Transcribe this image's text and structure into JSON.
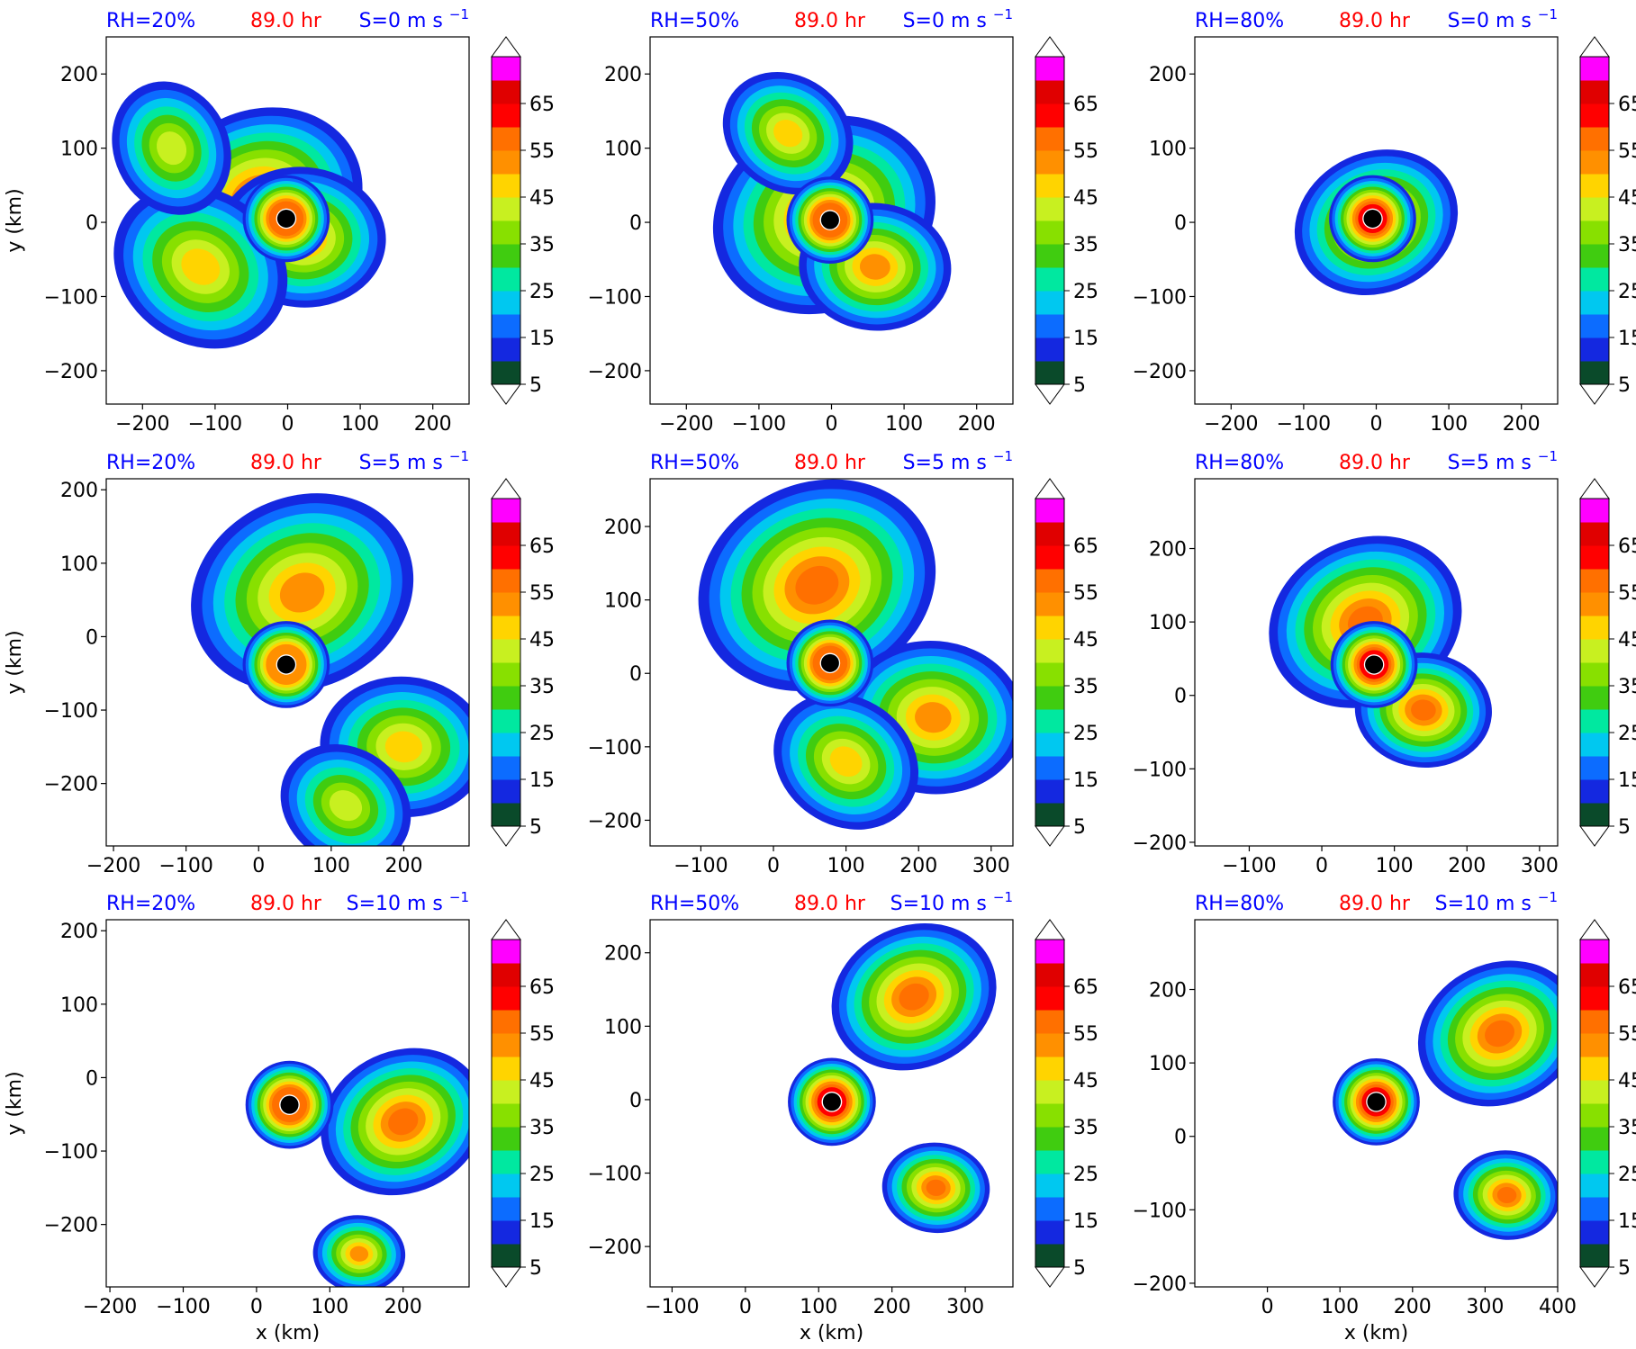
{
  "colorbar": {
    "ticks": [
      "5",
      "15",
      "25",
      "35",
      "45",
      "55",
      "65"
    ],
    "levels": [
      5,
      10,
      15,
      20,
      25,
      30,
      35,
      40,
      45,
      50,
      55,
      60,
      65,
      70
    ],
    "colors": [
      "#0a4a2a",
      "#1428e0",
      "#0c6cff",
      "#00c8f0",
      "#00e8a0",
      "#40cc10",
      "#88e000",
      "#c8f020",
      "#ffd400",
      "#ff9000",
      "#ff7000",
      "#ff0000",
      "#e00000",
      "#ff00ff",
      "#d070e0",
      "#f6c8f2"
    ]
  },
  "panel_text": {
    "time": "89.0 hr",
    "x_axis_label": "x (km)",
    "y_axis_label": "y (km)",
    "time_color": "#ff0000",
    "label_color": "#0000ff"
  },
  "chart_data": [
    {
      "type": "heatmap",
      "rh": "RH=20%",
      "shear": "S=0 m s",
      "shear_exp": "−1",
      "time": "89.0 hr",
      "xlim": [
        -250,
        250
      ],
      "ylim": [
        -245,
        250
      ],
      "xticks": [
        "−200",
        "−100",
        "0",
        "100",
        "200"
      ],
      "xtick_values": [
        -200,
        -100,
        0,
        100,
        200
      ],
      "yticks": [
        "200",
        "100",
        "0",
        "−100",
        "−200"
      ],
      "ytick_values": [
        200,
        100,
        0,
        -100,
        -200
      ],
      "center": [
        -2,
        5
      ],
      "peak": 50,
      "features": [
        {
          "x": -40,
          "y": 30,
          "r": 140
        },
        {
          "x": 20,
          "y": -20,
          "r": 110
        },
        {
          "x": -120,
          "y": -60,
          "r": 120
        },
        {
          "x": -160,
          "y": 100,
          "r": 90
        }
      ]
    },
    {
      "type": "heatmap",
      "rh": "RH=50%",
      "shear": "S=0 m s",
      "shear_exp": "−1",
      "time": "89.0 hr",
      "xlim": [
        -250,
        250
      ],
      "ylim": [
        -245,
        250
      ],
      "xticks": [
        "−200",
        "−100",
        "0",
        "100",
        "200"
      ],
      "xtick_values": [
        -200,
        -100,
        0,
        100,
        200
      ],
      "yticks": [
        "200",
        "100",
        "0",
        "−100",
        "−200"
      ],
      "ytick_values": [
        200,
        100,
        0,
        -100,
        -200
      ],
      "center": [
        -2,
        3
      ],
      "peak": 50,
      "features": [
        {
          "x": -10,
          "y": 10,
          "r": 150
        },
        {
          "x": 60,
          "y": -60,
          "r": 100
        },
        {
          "x": -60,
          "y": 120,
          "r": 90
        }
      ]
    },
    {
      "type": "heatmap",
      "rh": "RH=80%",
      "shear": "S=0 m s",
      "shear_exp": "−1",
      "time": "89.0 hr",
      "xlim": [
        -250,
        250
      ],
      "ylim": [
        -245,
        250
      ],
      "xticks": [
        "−200",
        "−100",
        "0",
        "100",
        "200"
      ],
      "xtick_values": [
        -200,
        -100,
        0,
        100,
        200
      ],
      "yticks": [
        "200",
        "100",
        "0",
        "−100",
        "−200"
      ],
      "ytick_values": [
        200,
        100,
        0,
        -100,
        -200
      ],
      "center": [
        -5,
        5
      ],
      "peak": 55,
      "features": [
        {
          "x": 0,
          "y": 0,
          "r": 110
        }
      ]
    },
    {
      "type": "heatmap",
      "rh": "RH=20%",
      "shear": "S=5 m s",
      "shear_exp": "−1",
      "time": "89.0 hr",
      "xlim": [
        -210,
        290
      ],
      "ylim": [
        -285,
        215
      ],
      "xticks": [
        "−200",
        "−100",
        "0",
        "100",
        "200"
      ],
      "xtick_values": [
        -200,
        -100,
        0,
        100,
        200
      ],
      "yticks": [
        "200",
        "100",
        "0",
        "−100",
        "−200"
      ],
      "ytick_values": [
        200,
        100,
        0,
        -100,
        -200
      ],
      "center": [
        38,
        -38
      ],
      "peak": 45,
      "features": [
        {
          "x": 60,
          "y": 60,
          "r": 150
        },
        {
          "x": 200,
          "y": -150,
          "r": 110
        },
        {
          "x": 120,
          "y": -230,
          "r": 90
        }
      ]
    },
    {
      "type": "heatmap",
      "rh": "RH=50%",
      "shear": "S=5 m s",
      "shear_exp": "−1",
      "time": "89.0 hr",
      "xlim": [
        -170,
        330
      ],
      "ylim": [
        -235,
        265
      ],
      "xticks": [
        "−100",
        "0",
        "100",
        "200",
        "300"
      ],
      "xtick_values": [
        -100,
        0,
        100,
        200,
        300
      ],
      "yticks": [
        "200",
        "100",
        "0",
        "−100",
        "−200"
      ],
      "ytick_values": [
        200,
        100,
        0,
        -100,
        -200
      ],
      "center": [
        78,
        14
      ],
      "peak": 50,
      "features": [
        {
          "x": 60,
          "y": 120,
          "r": 160
        },
        {
          "x": 220,
          "y": -60,
          "r": 120
        },
        {
          "x": 100,
          "y": -120,
          "r": 100
        }
      ]
    },
    {
      "type": "heatmap",
      "rh": "RH=80%",
      "shear": "S=5 m s",
      "shear_exp": "−1",
      "time": "89.0 hr",
      "xlim": [
        -175,
        325
      ],
      "ylim": [
        -205,
        295
      ],
      "xticks": [
        "−100",
        "0",
        "100",
        "200",
        "300"
      ],
      "xtick_values": [
        -100,
        0,
        100,
        200,
        300
      ],
      "yticks": [
        "200",
        "100",
        "0",
        "−100",
        "−200"
      ],
      "ytick_values": [
        200,
        100,
        0,
        -100,
        -200
      ],
      "center": [
        72,
        42
      ],
      "peak": 55,
      "features": [
        {
          "x": 60,
          "y": 100,
          "r": 130
        },
        {
          "x": 140,
          "y": -20,
          "r": 90
        }
      ]
    },
    {
      "type": "heatmap",
      "rh": "RH=20%",
      "shear": "S=10 m s",
      "shear_exp": "−1",
      "time": "89.0 hr",
      "xlim": [
        -205,
        290
      ],
      "ylim": [
        -285,
        215
      ],
      "xticks": [
        "−200",
        "−100",
        "0",
        "100",
        "200"
      ],
      "xtick_values": [
        -200,
        -100,
        0,
        100,
        200
      ],
      "yticks": [
        "200",
        "100",
        "0",
        "−100",
        "−200"
      ],
      "ytick_values": [
        200,
        100,
        0,
        -100,
        -200
      ],
      "center": [
        45,
        -37
      ],
      "peak": 50,
      "features": [
        {
          "x": 200,
          "y": -60,
          "r": 110
        },
        {
          "x": 140,
          "y": -240,
          "r": 60
        }
      ]
    },
    {
      "type": "heatmap",
      "rh": "RH=50%",
      "shear": "S=10 m s",
      "shear_exp": "−1",
      "time": "89.0 hr",
      "xlim": [
        -130,
        365
      ],
      "ylim": [
        -255,
        245
      ],
      "xticks": [
        "−100",
        "0",
        "100",
        "200",
        "300"
      ],
      "xtick_values": [
        -100,
        0,
        100,
        200,
        300
      ],
      "yticks": [
        "200",
        "100",
        "0",
        "−100",
        "−200"
      ],
      "ytick_values": [
        200,
        100,
        0,
        -100,
        -200
      ],
      "center": [
        118,
        -3
      ],
      "peak": 55,
      "features": [
        {
          "x": 230,
          "y": 140,
          "r": 110
        },
        {
          "x": 260,
          "y": -120,
          "r": 70
        }
      ]
    },
    {
      "type": "heatmap",
      "rh": "RH=80%",
      "shear": "S=10 m s",
      "shear_exp": "−1",
      "time": "89.0 hr",
      "xlim": [
        -100,
        400
      ],
      "ylim": [
        -205,
        295
      ],
      "xticks": [
        "0",
        "100",
        "200",
        "300",
        "400"
      ],
      "xtick_values": [
        0,
        100,
        200,
        300,
        400
      ],
      "yticks": [
        "200",
        "100",
        "0",
        "−100",
        "−200"
      ],
      "ytick_values": [
        200,
        100,
        0,
        -100,
        -200
      ],
      "center": [
        150,
        47
      ],
      "peak": 60,
      "features": [
        {
          "x": 320,
          "y": 140,
          "r": 110
        },
        {
          "x": 330,
          "y": -80,
          "r": 70
        }
      ]
    }
  ]
}
